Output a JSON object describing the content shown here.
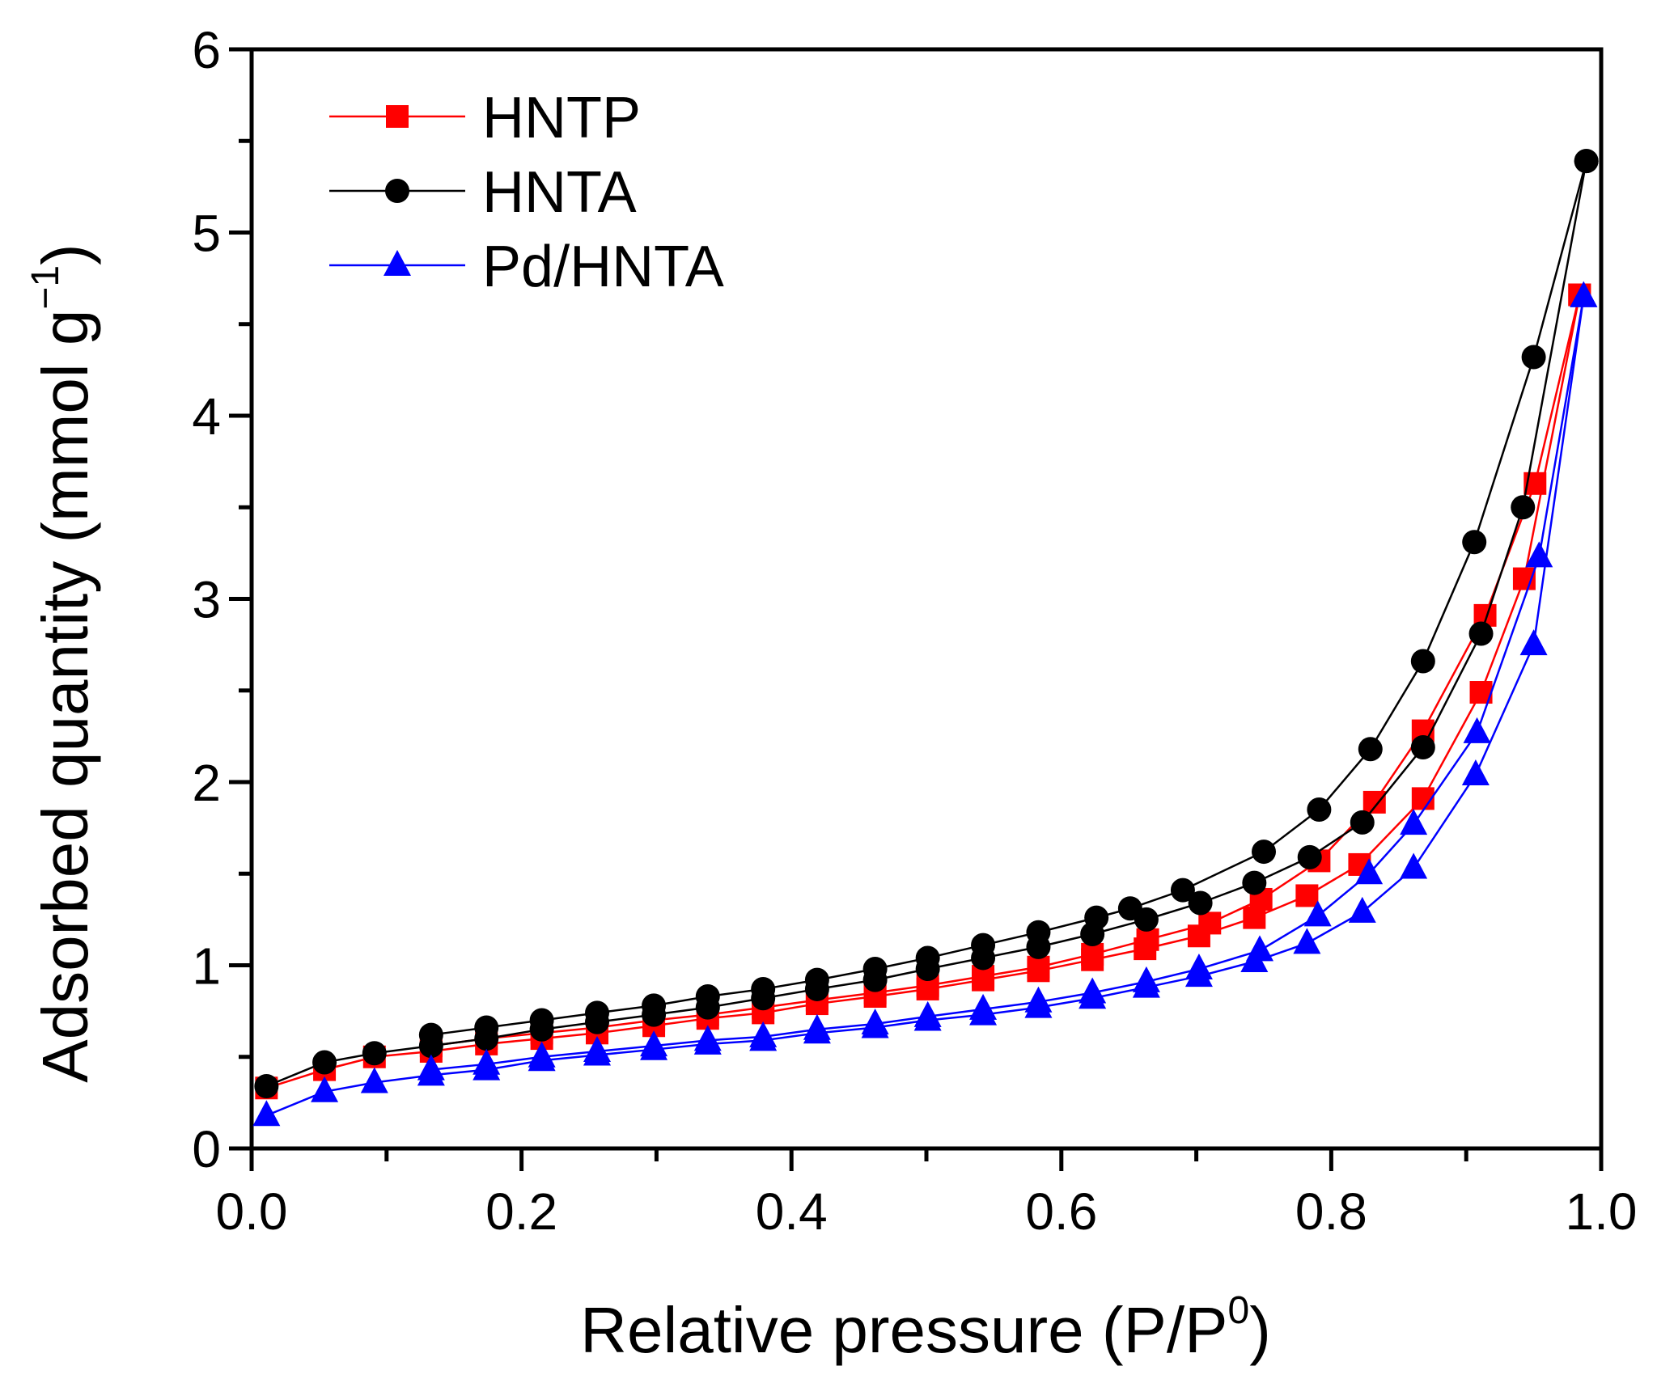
{
  "chart_data": {
    "type": "line",
    "title": "",
    "xlabel": "Relative pressure (P/P",
    "xlabel_sup": "0",
    "xlabel_end": ")",
    "ylabel": "Adsorbed quantity (mmol g",
    "ylabel_sup": "−1",
    "ylabel_end": ")",
    "xlim": [
      0,
      1.0
    ],
    "ylim": [
      0,
      6
    ],
    "xticks": [
      0.0,
      0.2,
      0.4,
      0.6,
      0.8,
      1.0
    ],
    "xtick_labels": [
      "0.0",
      "0.2",
      "0.4",
      "0.6",
      "0.8",
      "1.0"
    ],
    "yticks": [
      0,
      1,
      2,
      3,
      4,
      5,
      6
    ],
    "ytick_labels": [
      "0",
      "1",
      "2",
      "3",
      "4",
      "5",
      "6"
    ],
    "grid": false,
    "legend_position": "top-left",
    "series": [
      {
        "name": "HNTP",
        "color": "#ff0000",
        "marker": "square",
        "adsorption": {
          "x": [
            0.011,
            0.054,
            0.091,
            0.133,
            0.174,
            0.215,
            0.256,
            0.298,
            0.338,
            0.379,
            0.419,
            0.462,
            0.501,
            0.542,
            0.583,
            0.623,
            0.662,
            0.702,
            0.743,
            0.782,
            0.821,
            0.868,
            0.911,
            0.943,
            0.984
          ],
          "y": [
            0.33,
            0.43,
            0.5,
            0.53,
            0.57,
            0.6,
            0.63,
            0.67,
            0.71,
            0.74,
            0.79,
            0.83,
            0.87,
            0.92,
            0.97,
            1.03,
            1.09,
            1.16,
            1.26,
            1.38,
            1.55,
            1.91,
            2.49,
            3.11,
            4.66
          ]
        },
        "desorption": {
          "x": [
            0.984,
            0.951,
            0.914,
            0.868,
            0.832,
            0.791,
            0.748,
            0.71,
            0.664,
            0.623,
            0.583,
            0.542,
            0.501,
            0.462,
            0.419,
            0.379,
            0.338,
            0.298,
            0.256,
            0.215,
            0.174,
            0.133
          ],
          "y": [
            4.66,
            3.63,
            2.91,
            2.28,
            1.89,
            1.57,
            1.36,
            1.23,
            1.14,
            1.06,
            0.99,
            0.94,
            0.89,
            0.85,
            0.81,
            0.77,
            0.73,
            0.7,
            0.66,
            0.63,
            0.6,
            0.56
          ]
        }
      },
      {
        "name": "HNTA",
        "color": "#000000",
        "marker": "circle",
        "adsorption": {
          "x": [
            0.011,
            0.054,
            0.091,
            0.133,
            0.174,
            0.215,
            0.256,
            0.298,
            0.338,
            0.379,
            0.419,
            0.462,
            0.501,
            0.542,
            0.583,
            0.623,
            0.663,
            0.703,
            0.743,
            0.784,
            0.823,
            0.868,
            0.911,
            0.942,
            0.989
          ],
          "y": [
            0.34,
            0.47,
            0.52,
            0.56,
            0.6,
            0.65,
            0.69,
            0.73,
            0.77,
            0.82,
            0.87,
            0.92,
            0.98,
            1.04,
            1.1,
            1.17,
            1.25,
            1.34,
            1.45,
            1.59,
            1.78,
            2.19,
            2.81,
            3.5,
            5.39
          ]
        },
        "desorption": {
          "x": [
            0.989,
            0.95,
            0.906,
            0.868,
            0.829,
            0.791,
            0.75,
            0.69,
            0.651,
            0.626,
            0.583,
            0.542,
            0.501,
            0.462,
            0.419,
            0.379,
            0.338,
            0.298,
            0.256,
            0.215,
            0.174,
            0.133
          ],
          "y": [
            5.39,
            4.32,
            3.31,
            2.66,
            2.18,
            1.85,
            1.62,
            1.41,
            1.31,
            1.26,
            1.18,
            1.11,
            1.04,
            0.98,
            0.92,
            0.87,
            0.83,
            0.78,
            0.74,
            0.7,
            0.66,
            0.62
          ]
        }
      },
      {
        "name": "Pd/HNTA",
        "color": "#0000ff",
        "marker": "triangle",
        "adsorption": {
          "x": [
            0.011,
            0.054,
            0.091,
            0.133,
            0.174,
            0.215,
            0.256,
            0.298,
            0.338,
            0.379,
            0.419,
            0.462,
            0.501,
            0.542,
            0.583,
            0.623,
            0.663,
            0.702,
            0.743,
            0.782,
            0.823,
            0.861,
            0.907,
            0.95,
            0.987
          ],
          "y": [
            0.18,
            0.31,
            0.36,
            0.4,
            0.43,
            0.48,
            0.51,
            0.54,
            0.57,
            0.59,
            0.63,
            0.66,
            0.7,
            0.73,
            0.77,
            0.82,
            0.88,
            0.94,
            1.02,
            1.12,
            1.29,
            1.53,
            2.04,
            2.75,
            4.65
          ]
        },
        "desorption": {
          "x": [
            0.987,
            0.954,
            0.908,
            0.861,
            0.828,
            0.79,
            0.747,
            0.702,
            0.663,
            0.623,
            0.583,
            0.542,
            0.501,
            0.462,
            0.419,
            0.379,
            0.338,
            0.298,
            0.256,
            0.215,
            0.174,
            0.133
          ],
          "y": [
            4.65,
            3.23,
            2.27,
            1.77,
            1.5,
            1.27,
            1.08,
            0.98,
            0.91,
            0.85,
            0.8,
            0.76,
            0.72,
            0.68,
            0.65,
            0.61,
            0.59,
            0.56,
            0.53,
            0.5,
            0.46,
            0.43
          ]
        }
      }
    ]
  }
}
